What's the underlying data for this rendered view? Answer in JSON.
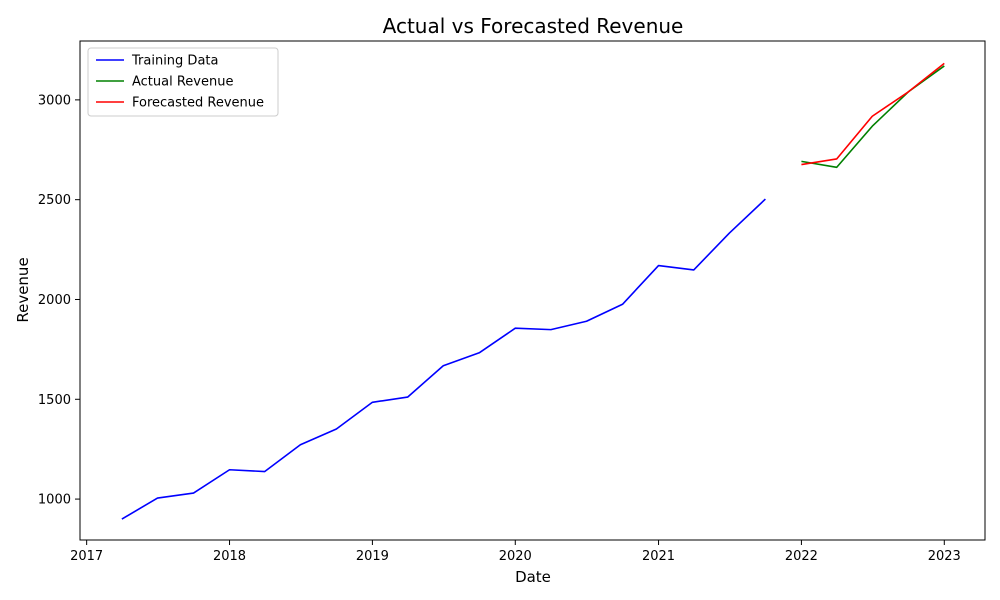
{
  "chart_data": {
    "type": "line",
    "title": "Actual vs Forecasted Revenue",
    "xlabel": "Date",
    "ylabel": "Revenue",
    "x_ticks": [
      "2017",
      "2018",
      "2019",
      "2020",
      "2021",
      "2022",
      "2023"
    ],
    "y_ticks": [
      1000,
      1500,
      2000,
      2500,
      3000
    ],
    "xlim": [
      "2016-12-15",
      "2023-04-15"
    ],
    "ylim": [
      795,
      3295
    ],
    "grid": false,
    "legend_position": "top-left",
    "series": [
      {
        "name": "Training Data",
        "color": "#0000ff",
        "x": [
          "2017-04-01",
          "2017-07-01",
          "2017-10-01",
          "2018-01-01",
          "2018-04-01",
          "2018-07-01",
          "2018-10-01",
          "2019-01-01",
          "2019-04-01",
          "2019-07-01",
          "2019-10-01",
          "2020-01-01",
          "2020-04-01",
          "2020-07-01",
          "2020-10-01",
          "2021-01-01",
          "2021-04-01",
          "2021-07-01",
          "2021-10-01"
        ],
        "y": [
          900,
          1005,
          1030,
          1147,
          1138,
          1272,
          1351,
          1485,
          1511,
          1668,
          1733,
          1856,
          1849,
          1891,
          1976,
          2170,
          2148,
          2333,
          2503
        ]
      },
      {
        "name": "Actual Revenue",
        "color": "#008000",
        "x": [
          "2022-01-01",
          "2022-04-01",
          "2022-07-01",
          "2022-10-01",
          "2023-01-01"
        ],
        "y": [
          2692,
          2662,
          2868,
          3040,
          3170
        ]
      },
      {
        "name": "Forecasted Revenue",
        "color": "#ff0000",
        "x": [
          "2022-01-01",
          "2022-04-01",
          "2022-07-01",
          "2022-10-01",
          "2023-01-01"
        ],
        "y": [
          2676,
          2704,
          2918,
          3040,
          3183
        ]
      }
    ]
  }
}
